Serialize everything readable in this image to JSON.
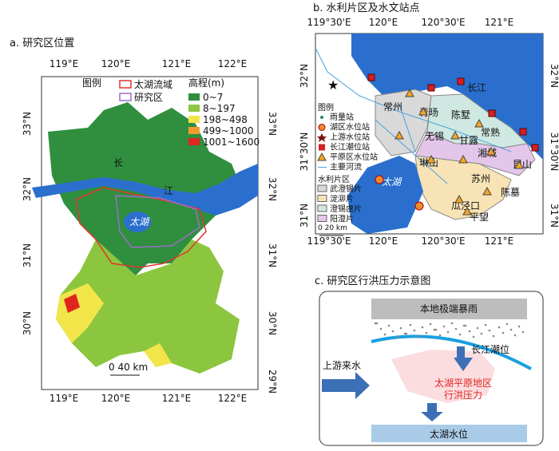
{
  "panel_a": {
    "title": "a. 研究区位置",
    "x_ticks": [
      "119°E",
      "120°E",
      "121°E",
      "122°E"
    ],
    "y_ticks_left": [
      "33°N",
      "32°N",
      "31°N",
      "30°N"
    ],
    "y_ticks_right": [
      "33°N",
      "32°N",
      "31°N",
      "30°N",
      "29°N"
    ],
    "legend": {
      "title": "图例",
      "items": [
        {
          "label": "太湖流域",
          "color": "#e0362c"
        },
        {
          "label": "研究区",
          "color": "#9b6fc8"
        }
      ]
    },
    "elevation": {
      "title": "高程(m)",
      "items": [
        {
          "label": "0~7",
          "color": "#2f8f3f"
        },
        {
          "label": "8~197",
          "color": "#8cc63f"
        },
        {
          "label": "198~498",
          "color": "#f2e54a"
        },
        {
          "label": "499~1000",
          "color": "#f39a32"
        },
        {
          "label": "1001~1600",
          "color": "#e0251f"
        }
      ]
    },
    "river_label": [
      "长",
      "江"
    ],
    "lake_label": "太湖",
    "scale": "0      40 km"
  },
  "panel_b": {
    "title": "b. 水利片区及水文站点",
    "x_ticks": [
      "119°30'E",
      "120°E",
      "120°30'E",
      "121°E"
    ],
    "y_ticks": [
      "32°N",
      "31°30'N",
      "31°N"
    ],
    "legend": {
      "title": "图例",
      "stations": [
        "雨量站",
        "湖区水位站",
        "上游水位站",
        "长江潮位站",
        "平原区水位站",
        "主要河流"
      ],
      "zones_title": "水利片区",
      "zones": [
        {
          "label": "武澄锡片",
          "color": "#d9d9d9"
        },
        {
          "label": "淀泖片",
          "color": "#f7e3b5"
        },
        {
          "label": "澄锡虞片",
          "color": "#cfe9e2"
        },
        {
          "label": "阳澄片",
          "color": "#e3c6ea"
        }
      ]
    },
    "places": [
      "长江",
      "常州",
      "青旸",
      "陈墅",
      "无锡",
      "甘露",
      "常熟",
      "湘城",
      "琳山",
      "太湖",
      "苏州",
      "昆山",
      "陈墓",
      "瓜泾口",
      "平望"
    ],
    "scale": "0      20 km"
  },
  "panel_c": {
    "title": "c. 研究区行洪压力示意图",
    "rain": "本地极端暴雨",
    "tide": "长江潮位",
    "upstream": "上游来水",
    "pressure": [
      "太湖平原地区",
      "行洪压力"
    ],
    "lake_level": "太湖水位"
  }
}
